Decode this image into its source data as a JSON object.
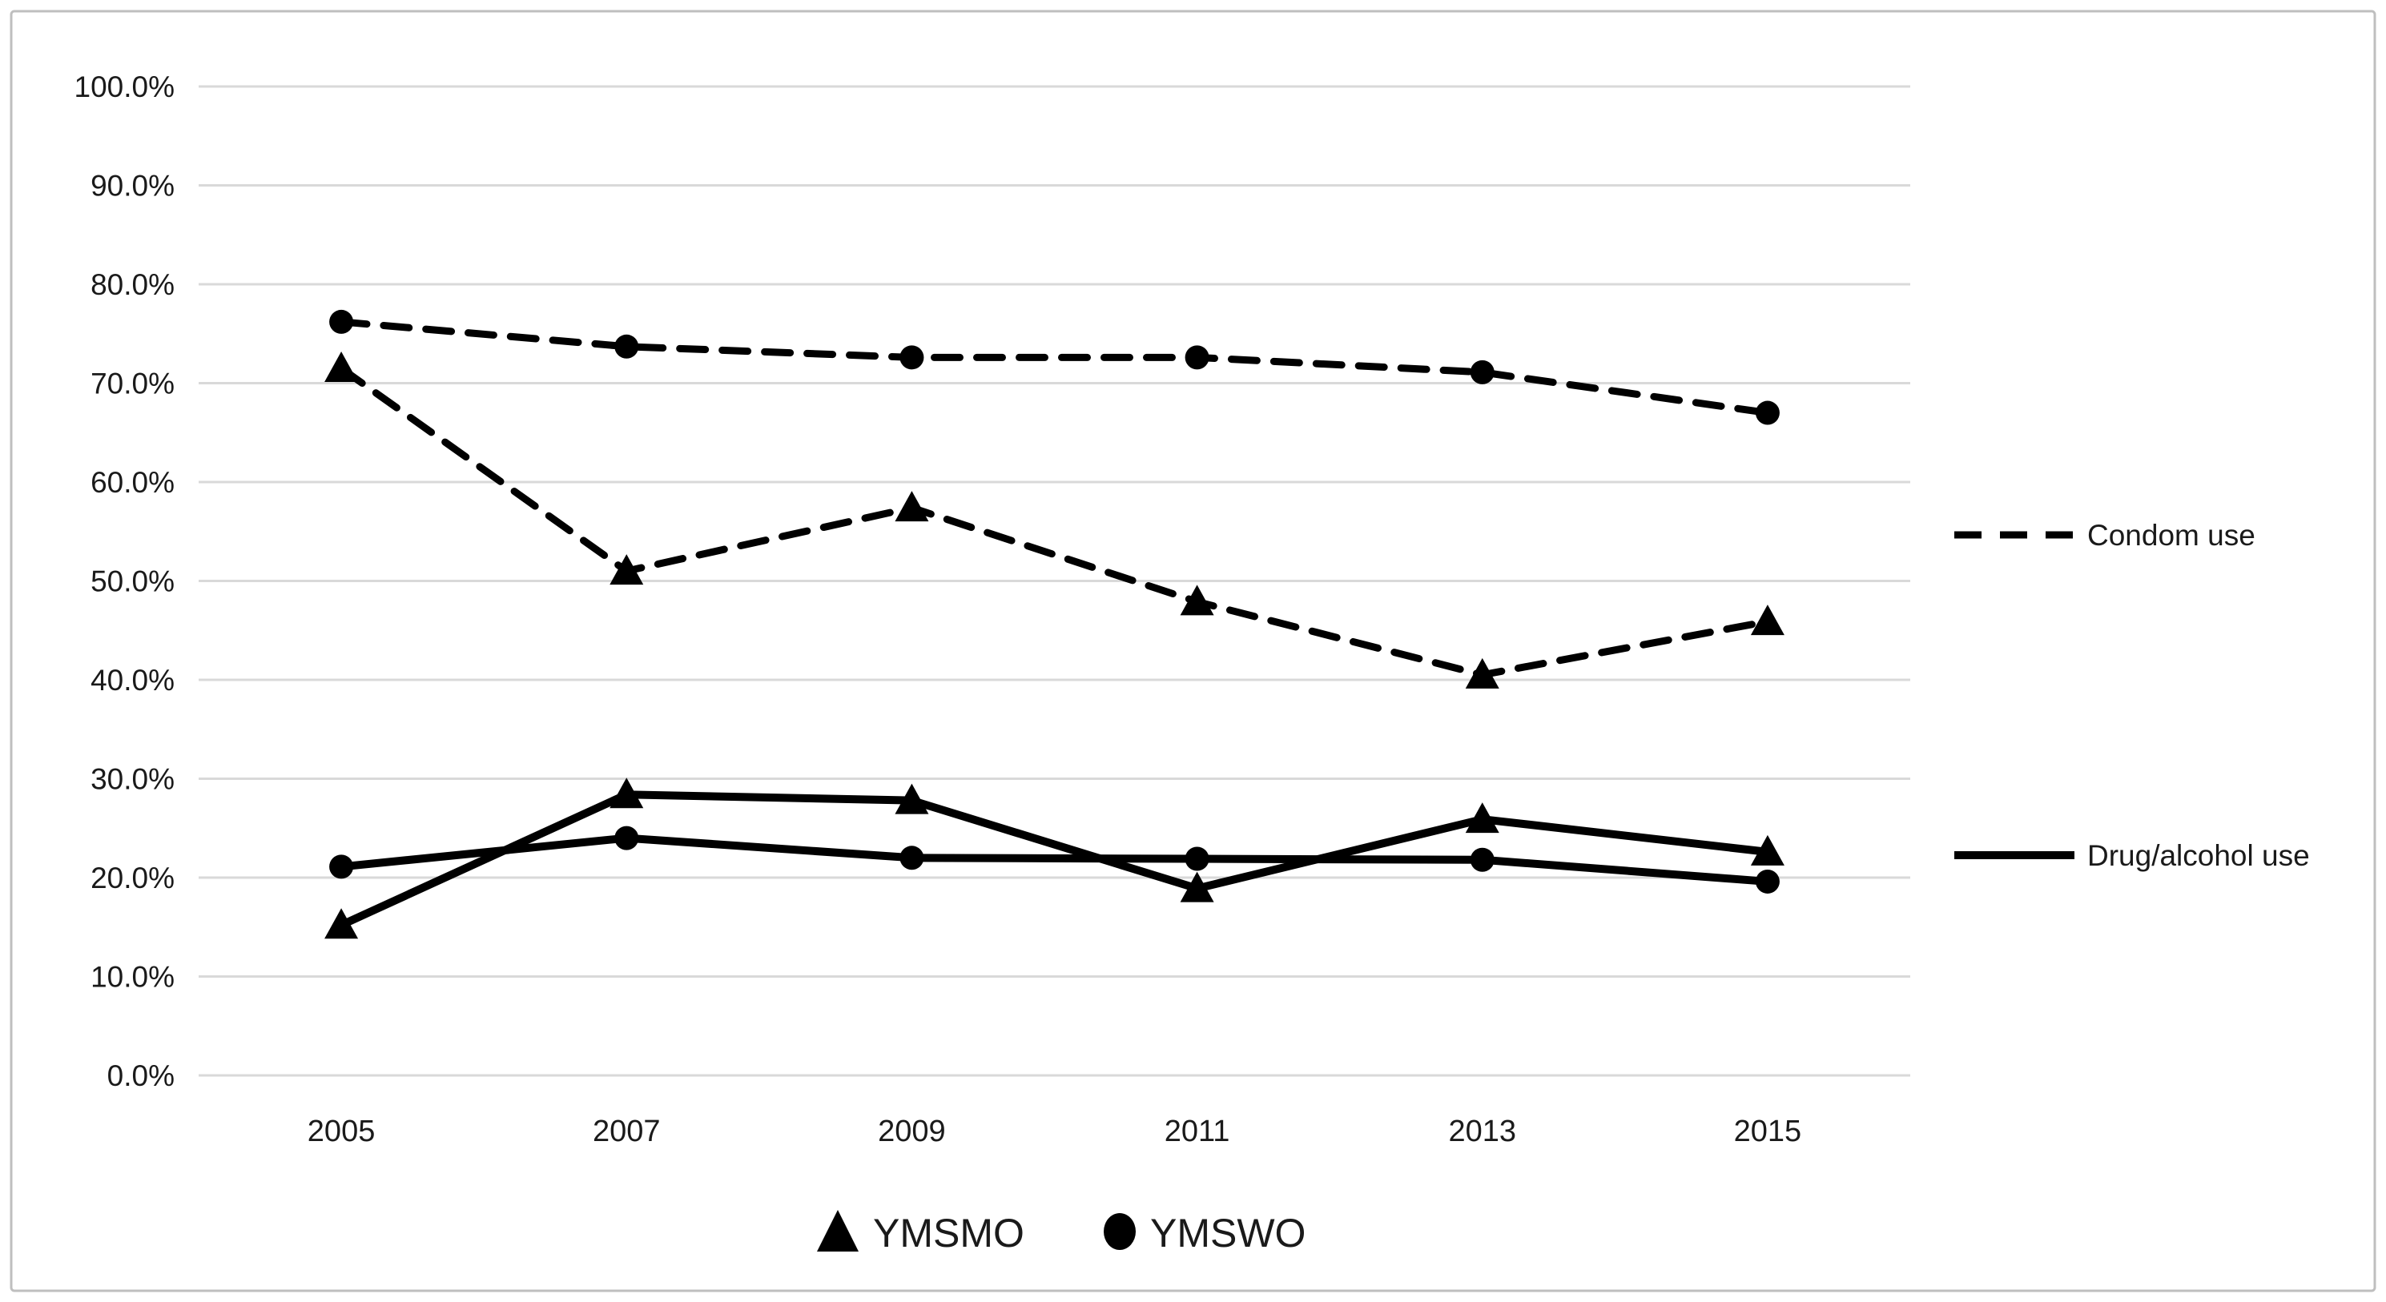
{
  "chart_style": {
    "background": "#ffffff",
    "border_color": "#bfbfbf",
    "gridline_color": "#d9d9d9",
    "series_color": "#000000",
    "text_color": "#1a1a1a"
  },
  "chart_data": {
    "type": "line",
    "title": "",
    "xlabel": "",
    "ylabel": "",
    "grid": true,
    "legend_position": "right-and-bottom",
    "categories": [
      "2005",
      "2007",
      "2009",
      "2011",
      "2013",
      "2015"
    ],
    "y_axis": {
      "min": 0,
      "max": 100,
      "step": 10,
      "tick_labels": [
        "0.0%",
        "10.0%",
        "20.0%",
        "30.0%",
        "40.0%",
        "50.0%",
        "60.0%",
        "70.0%",
        "80.0%",
        "90.0%",
        "100.0%"
      ]
    },
    "series": [
      {
        "id": "condom-ymswo",
        "name": "Condom use — YMSWO",
        "group": "Condom use",
        "population": "YMSWO",
        "marker": "circle",
        "line_style": "dashed",
        "values": [
          76.2,
          73.7,
          72.6,
          72.6,
          71.1,
          67.0
        ]
      },
      {
        "id": "condom-ymsmo",
        "name": "Condom use — YMSMO",
        "group": "Condom use",
        "population": "YMSMO",
        "marker": "triangle",
        "line_style": "dashed",
        "values": [
          71.5,
          51.0,
          57.4,
          47.9,
          40.5,
          45.9
        ]
      },
      {
        "id": "drug-alcohol-ymswo",
        "name": "Drug/alcohol use — YMSWO",
        "group": "Drug/alcohol use",
        "population": "YMSWO",
        "marker": "circle",
        "line_style": "solid",
        "values": [
          21.1,
          24.0,
          22.0,
          21.9,
          21.8,
          19.6
        ]
      },
      {
        "id": "drug-alcohol-ymsmo",
        "name": "Drug/alcohol use — YMSMO",
        "group": "Drug/alcohol use",
        "population": "YMSMO",
        "marker": "triangle",
        "line_style": "solid",
        "values": [
          15.2,
          28.4,
          27.8,
          18.9,
          25.9,
          22.6
        ]
      }
    ],
    "line_legend": [
      {
        "label": "Condom use",
        "style": "dashed"
      },
      {
        "label": "Drug/alcohol use",
        "style": "solid"
      }
    ],
    "marker_legend": [
      {
        "label": "YMSMO",
        "marker": "triangle"
      },
      {
        "label": "YMSWO",
        "marker": "circle"
      }
    ]
  }
}
